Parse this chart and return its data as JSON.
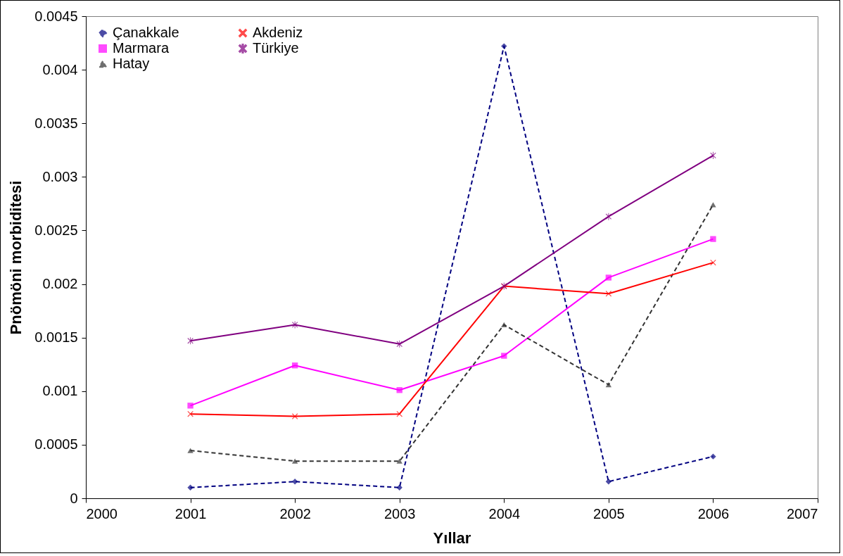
{
  "chart_data": {
    "type": "line",
    "xlabel": "Yıllar",
    "ylabel": "Pnömöni morbiditesi",
    "x": [
      2001,
      2002,
      2003,
      2004,
      2005,
      2006
    ],
    "xlim": [
      2000,
      2007
    ],
    "xticks": [
      2000,
      2001,
      2002,
      2003,
      2004,
      2005,
      2006,
      2007
    ],
    "ylim": [
      0,
      0.0045
    ],
    "yticks": [
      0,
      0.0005,
      0.001,
      0.0015,
      0.002,
      0.0025,
      0.003,
      0.0035,
      0.004,
      0.0045
    ],
    "grid": false,
    "legend": "top left",
    "series": [
      {
        "name": "Çanakkale",
        "color": "#000080",
        "marker": "diamond",
        "line_style": "dashed",
        "values": [
          0.0001,
          0.000156,
          0.0001,
          0.00422,
          0.000156,
          0.00039
        ]
      },
      {
        "name": "Marmara",
        "color": "#ff00ff",
        "marker": "square",
        "line_style": "solid",
        "values": [
          0.000865,
          0.00124,
          0.00101,
          0.00133,
          0.00206,
          0.00242
        ]
      },
      {
        "name": "Hatay",
        "color": "#333333",
        "marker": "triangle",
        "line_style": "dashed",
        "values": [
          0.000446,
          0.000347,
          0.000347,
          0.00162,
          0.00106,
          0.00274
        ]
      },
      {
        "name": "Akdeniz",
        "color": "#ff0000",
        "marker": "cross",
        "line_style": "solid",
        "values": [
          0.000787,
          0.000765,
          0.000787,
          0.00198,
          0.00191,
          0.0022
        ]
      },
      {
        "name": "Türkiye",
        "color": "#800080",
        "marker": "star",
        "line_style": "solid",
        "values": [
          0.00147,
          0.00162,
          0.00144,
          0.00198,
          0.00263,
          0.0032
        ]
      }
    ]
  }
}
